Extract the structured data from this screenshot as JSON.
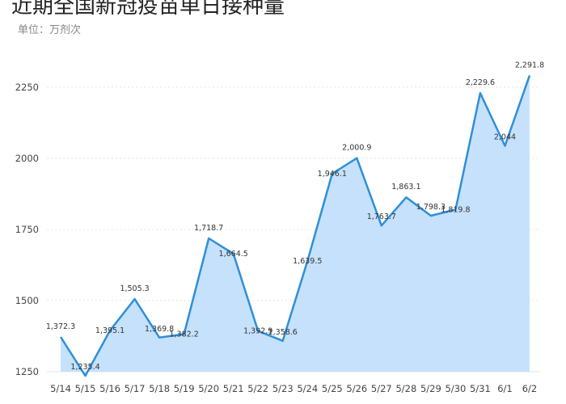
{
  "chart_data": {
    "type": "area",
    "title": "近期全国新冠疫苗单日接种量",
    "subtitle": "单位：万剂次",
    "categories": [
      "5/14",
      "5/15",
      "5/16",
      "5/17",
      "5/18",
      "5/19",
      "5/20",
      "5/21",
      "5/22",
      "5/23",
      "5/24",
      "5/25",
      "5/26",
      "5/27",
      "5/28",
      "5/29",
      "5/30",
      "5/31",
      "6/1",
      "6/2"
    ],
    "values": [
      1372.3,
      1235.4,
      1395.1,
      1505.3,
      1369.8,
      1382.2,
      1718.7,
      1664.5,
      1392.9,
      1358.6,
      1639.5,
      1946.1,
      2000.9,
      1763.7,
      1863.1,
      1798.3,
      1819.8,
      2229.6,
      2044,
      2291.8
    ],
    "value_labels": [
      "1,372.3",
      "1,235.4",
      "1,395.1",
      "1,505.3",
      "1,369.8",
      "1,382.2",
      "1,718.7",
      "1,664.5",
      "1,392.9",
      "1,358.6",
      "1,639.5",
      "1,946.1",
      "2,000.9",
      "1,763.7",
      "1,863.1",
      "1,798.3",
      "1,819.8",
      "2,229.6",
      "2,044",
      "2,291.8"
    ],
    "yticks": [
      1250,
      1500,
      1750,
      2000,
      2250
    ],
    "ylim": [
      1250,
      2300
    ],
    "grid": true,
    "colors": {
      "line": "#2f8fd8",
      "fill": "#c5e1fb",
      "grid": "#e6e6e6"
    }
  }
}
